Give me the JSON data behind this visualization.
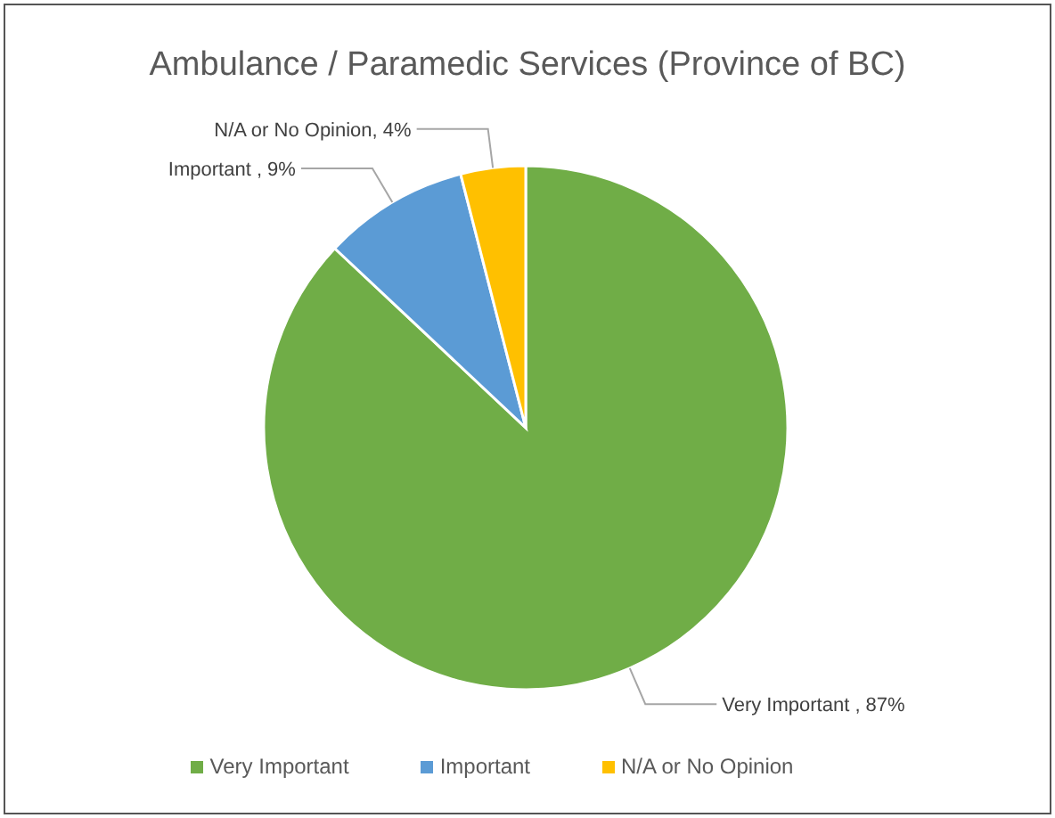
{
  "chart_data": {
    "type": "pie",
    "title": "Ambulance / Paramedic Services (Province of BC)",
    "categories": [
      "Very Important",
      "Important",
      "N/A or No Opinion"
    ],
    "values": [
      87,
      9,
      4
    ],
    "colors": [
      "#70ad47",
      "#5b9bd5",
      "#ffc000"
    ],
    "value_labels": [
      "Very Important , 87%",
      "Important , 9%",
      "N/A or No Opinion, 4%"
    ],
    "legend": "bottom"
  }
}
